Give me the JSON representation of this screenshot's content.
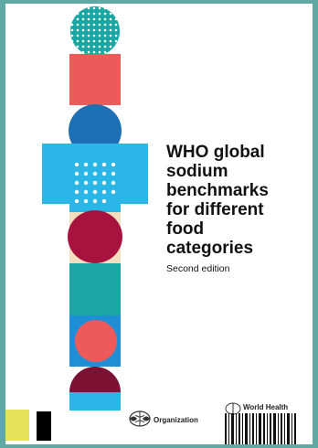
{
  "cover": {
    "title": "WHO global\nsodium\nbenchmarks\nfor different\nfood\ncategories",
    "edition": "Second edition",
    "footer_left_text": "Organization",
    "footer_right_text": "World Health"
  },
  "colors": {
    "teal": "#1aa7a3",
    "coral": "#ee5a5a",
    "navy": "#1f6fb5",
    "sky": "#2ab6e6",
    "crimson": "#a8123e",
    "maroon": "#7b1233",
    "cream": "#f3dfc0",
    "blue": "#1e8fd6"
  }
}
